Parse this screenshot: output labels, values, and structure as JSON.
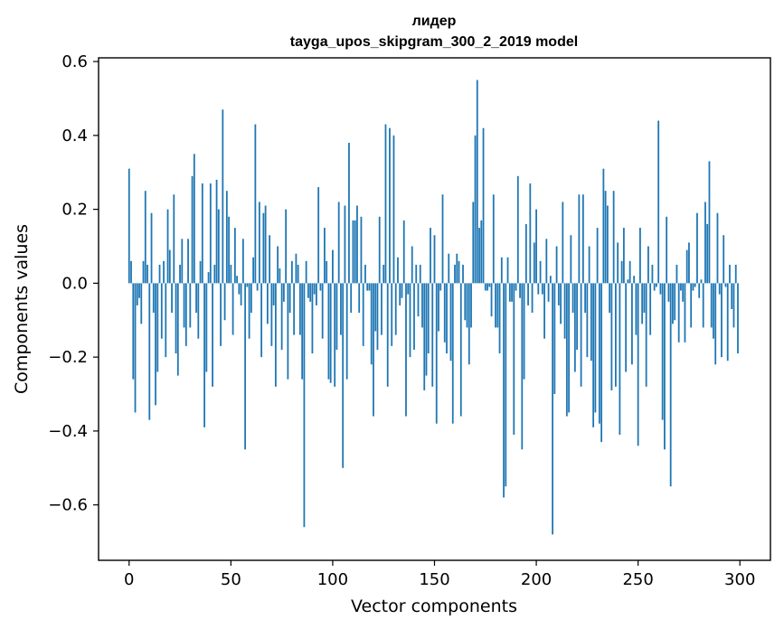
{
  "chart_data": {
    "type": "bar",
    "title": "лидер",
    "subtitle": "tayga_upos_skipgram_300_2_2019 model",
    "xlabel": "Vector components",
    "ylabel": "Components values",
    "xlim": [
      -15,
      315
    ],
    "ylim": [
      -0.75,
      0.61
    ],
    "x_ticks": [
      0,
      50,
      100,
      150,
      200,
      250,
      300
    ],
    "x_tick_labels": [
      "0",
      "50",
      "100",
      "150",
      "200",
      "250",
      "300"
    ],
    "y_ticks": [
      -0.6,
      -0.4,
      -0.2,
      0.0,
      0.2,
      0.4,
      0.6
    ],
    "y_tick_labels": [
      "−0.6",
      "−0.4",
      "−0.2",
      "0.0",
      "0.2",
      "0.4",
      "0.6"
    ],
    "bar_color": "#1f77b4",
    "grid": false,
    "values": [
      0.31,
      0.06,
      -0.26,
      -0.35,
      -0.06,
      -0.04,
      -0.11,
      0.06,
      0.25,
      0.05,
      -0.37,
      0.19,
      -0.08,
      -0.33,
      -0.24,
      0.05,
      -0.15,
      0.06,
      -0.2,
      0.2,
      0.09,
      -0.08,
      0.24,
      -0.19,
      -0.25,
      0.05,
      0.12,
      -0.12,
      -0.17,
      0.12,
      -0.12,
      0.29,
      0.35,
      -0.08,
      -0.15,
      0.06,
      0.27,
      -0.39,
      -0.24,
      0.03,
      0.27,
      -0.28,
      0.05,
      0.28,
      0.2,
      -0.17,
      0.47,
      -0.1,
      0.25,
      0.18,
      0.05,
      -0.14,
      0.15,
      0.02,
      -0.03,
      -0.06,
      0.12,
      -0.45,
      -0.01,
      -0.15,
      -0.08,
      0.07,
      0.43,
      -0.02,
      0.22,
      -0.2,
      0.19,
      0.21,
      -0.11,
      0.13,
      -0.17,
      -0.06,
      -0.28,
      0.1,
      0.04,
      -0.18,
      -0.05,
      0.2,
      -0.26,
      -0.08,
      0.06,
      -0.14,
      0.08,
      0.05,
      -0.14,
      -0.26,
      -0.66,
      0.06,
      -0.04,
      -0.05,
      -0.19,
      -0.03,
      -0.06,
      0.26,
      -0.02,
      -0.15,
      0.15,
      0.06,
      -0.26,
      -0.27,
      0.09,
      -0.28,
      -0.18,
      0.22,
      -0.14,
      -0.5,
      0.21,
      -0.26,
      0.38,
      -0.08,
      0.17,
      0.17,
      0.21,
      -0.08,
      0.18,
      -0.17,
      0.05,
      -0.02,
      -0.02,
      -0.22,
      -0.36,
      -0.13,
      -0.18,
      0.18,
      -0.14,
      0.05,
      0.43,
      -0.28,
      0.42,
      -0.17,
      0.4,
      -0.14,
      0.07,
      -0.06,
      -0.04,
      0.17,
      -0.36,
      -0.03,
      -0.2,
      0.1,
      -0.18,
      0.05,
      -0.09,
      0.05,
      -0.12,
      -0.29,
      -0.25,
      -0.19,
      0.15,
      -0.28,
      0.13,
      -0.38,
      -0.13,
      -0.02,
      0.24,
      -0.16,
      -0.19,
      0.08,
      -0.21,
      -0.38,
      0.05,
      0.08,
      0.06,
      -0.36,
      0.05,
      -0.1,
      -0.12,
      -0.22,
      -0.12,
      0.22,
      0.4,
      0.55,
      0.15,
      0.17,
      0.42,
      -0.02,
      -0.02,
      -0.01,
      -0.09,
      0.24,
      -0.12,
      -0.12,
      -0.19,
      0.07,
      -0.58,
      -0.55,
      0.07,
      -0.05,
      -0.05,
      -0.41,
      -0.02,
      0.29,
      -0.04,
      -0.45,
      -0.26,
      0.16,
      -0.06,
      0.27,
      -0.08,
      0.11,
      0.2,
      -0.03,
      0.06,
      -0.03,
      -0.15,
      0.12,
      -0.05,
      0.02,
      -0.68,
      -0.3,
      0.1,
      -0.06,
      -0.11,
      0.22,
      -0.15,
      -0.36,
      -0.35,
      0.13,
      -0.08,
      -0.24,
      -0.18,
      0.24,
      -0.28,
      0.24,
      -0.08,
      -0.2,
      0.1,
      -0.21,
      -0.39,
      -0.35,
      0.15,
      -0.38,
      -0.43,
      0.31,
      0.25,
      0.21,
      -0.08,
      -0.29,
      0.25,
      -0.28,
      0.11,
      -0.41,
      0.06,
      0.15,
      -0.24,
      0.01,
      0.06,
      -0.22,
      0.02,
      -0.14,
      -0.44,
      0.15,
      -0.11,
      -0.08,
      -0.28,
      0.1,
      -0.14,
      0.05,
      -0.02,
      -0.01,
      0.44,
      -0.03,
      -0.37,
      -0.45,
      0.18,
      -0.05,
      -0.55,
      -0.11,
      -0.1,
      0.05,
      -0.16,
      -0.02,
      -0.05,
      -0.16,
      0.09,
      0.11,
      -0.12,
      -0.02,
      -0.01,
      0.19,
      -0.04,
      0.01,
      -0.12,
      0.22,
      0.16,
      0.33,
      -0.12,
      -0.15,
      -0.22,
      0.19,
      -0.03,
      -0.2,
      0.13,
      -0.01,
      -0.21,
      0.05,
      -0.07,
      -0.12,
      0.05,
      -0.19
    ]
  }
}
